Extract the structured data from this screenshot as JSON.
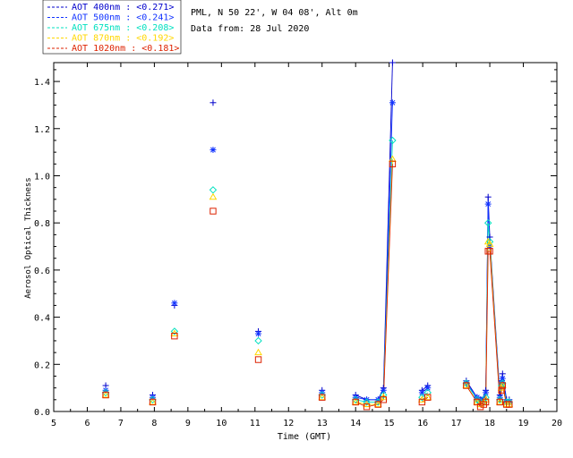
{
  "chart_data": {
    "type": "scatter",
    "header": {
      "site_line": "PML, N 50 22', W 04 08', Alt 0m",
      "date_line": "Data from: 28 Jul 2020"
    },
    "xlabel": "Time (GMT)",
    "ylabel": "Aerosol Optical Thickness",
    "xlim": [
      5,
      20
    ],
    "ylim": [
      0,
      1.48
    ],
    "xticks": [
      "5",
      "6",
      "7",
      "8",
      "9",
      "10",
      "11",
      "12",
      "13",
      "14",
      "15",
      "16",
      "17",
      "18",
      "19",
      "20"
    ],
    "yticks": [
      "0.0",
      "0.2",
      "0.4",
      "0.6",
      "0.8",
      "1.0",
      "1.2",
      "1.4"
    ],
    "x_tick_values": [
      5,
      6,
      7,
      8,
      9,
      10,
      11,
      12,
      13,
      14,
      15,
      16,
      17,
      18,
      19,
      20
    ],
    "y_tick_values": [
      0,
      0.2,
      0.4,
      0.6,
      0.8,
      1.0,
      1.2,
      1.4
    ],
    "legend_position": "top-left, outside plot",
    "x": [
      6.55,
      7.95,
      8.6,
      9.75,
      11.1,
      13.0,
      14.0,
      14.33,
      14.67,
      14.83,
      15.1,
      15.98,
      16.15,
      17.3,
      17.62,
      17.72,
      17.82,
      17.88,
      17.95,
      18.0,
      18.3,
      18.35,
      18.38,
      18.5,
      18.58
    ],
    "series": [
      {
        "name": "AOT  400nm : <0.271>",
        "color": "#0000cc",
        "marker": "plus",
        "values": [
          0.11,
          0.07,
          0.45,
          1.31,
          0.34,
          0.09,
          0.07,
          0.05,
          0.05,
          0.1,
          1.48,
          0.09,
          0.11,
          0.13,
          0.06,
          0.05,
          0.06,
          0.09,
          0.91,
          0.74,
          0.07,
          0.13,
          0.16,
          0.05,
          0.05
        ]
      },
      {
        "name": "AOT  500nm : <0.241>",
        "color": "#1133ff",
        "marker": "star",
        "values": [
          0.09,
          0.06,
          0.46,
          1.11,
          0.33,
          0.08,
          0.06,
          0.05,
          0.05,
          0.09,
          1.31,
          0.08,
          0.1,
          0.12,
          0.06,
          0.05,
          0.05,
          0.08,
          0.88,
          0.7,
          0.06,
          0.12,
          0.14,
          0.04,
          0.04
        ]
      },
      {
        "name": "AOT  675nm : <0.208>",
        "color": "#00e0c0",
        "marker": "diamond",
        "values": [
          0.08,
          0.05,
          0.34,
          0.94,
          0.3,
          0.07,
          0.05,
          0.04,
          0.04,
          0.07,
          1.15,
          0.06,
          0.08,
          0.12,
          0.05,
          0.04,
          0.04,
          0.06,
          0.8,
          0.72,
          0.05,
          0.11,
          0.12,
          0.04,
          0.04
        ]
      },
      {
        "name": "AOT  870nm : <0.192>",
        "color": "#ffd700",
        "marker": "triangle",
        "values": [
          0.07,
          0.04,
          0.33,
          0.91,
          0.25,
          0.06,
          0.04,
          0.03,
          0.03,
          0.06,
          1.07,
          0.05,
          0.06,
          0.11,
          0.04,
          0.03,
          0.04,
          0.05,
          0.72,
          0.71,
          0.04,
          0.1,
          0.11,
          0.03,
          0.03
        ]
      },
      {
        "name": "AOT 1020nm : <0.181>",
        "color": "#dd2200",
        "marker": "square",
        "values": [
          0.07,
          0.04,
          0.32,
          0.85,
          0.22,
          0.06,
          0.04,
          0.02,
          0.03,
          0.05,
          1.05,
          0.04,
          0.06,
          0.11,
          0.04,
          0.02,
          0.03,
          0.04,
          0.68,
          0.68,
          0.04,
          0.09,
          0.11,
          0.03,
          0.03
        ]
      }
    ]
  }
}
